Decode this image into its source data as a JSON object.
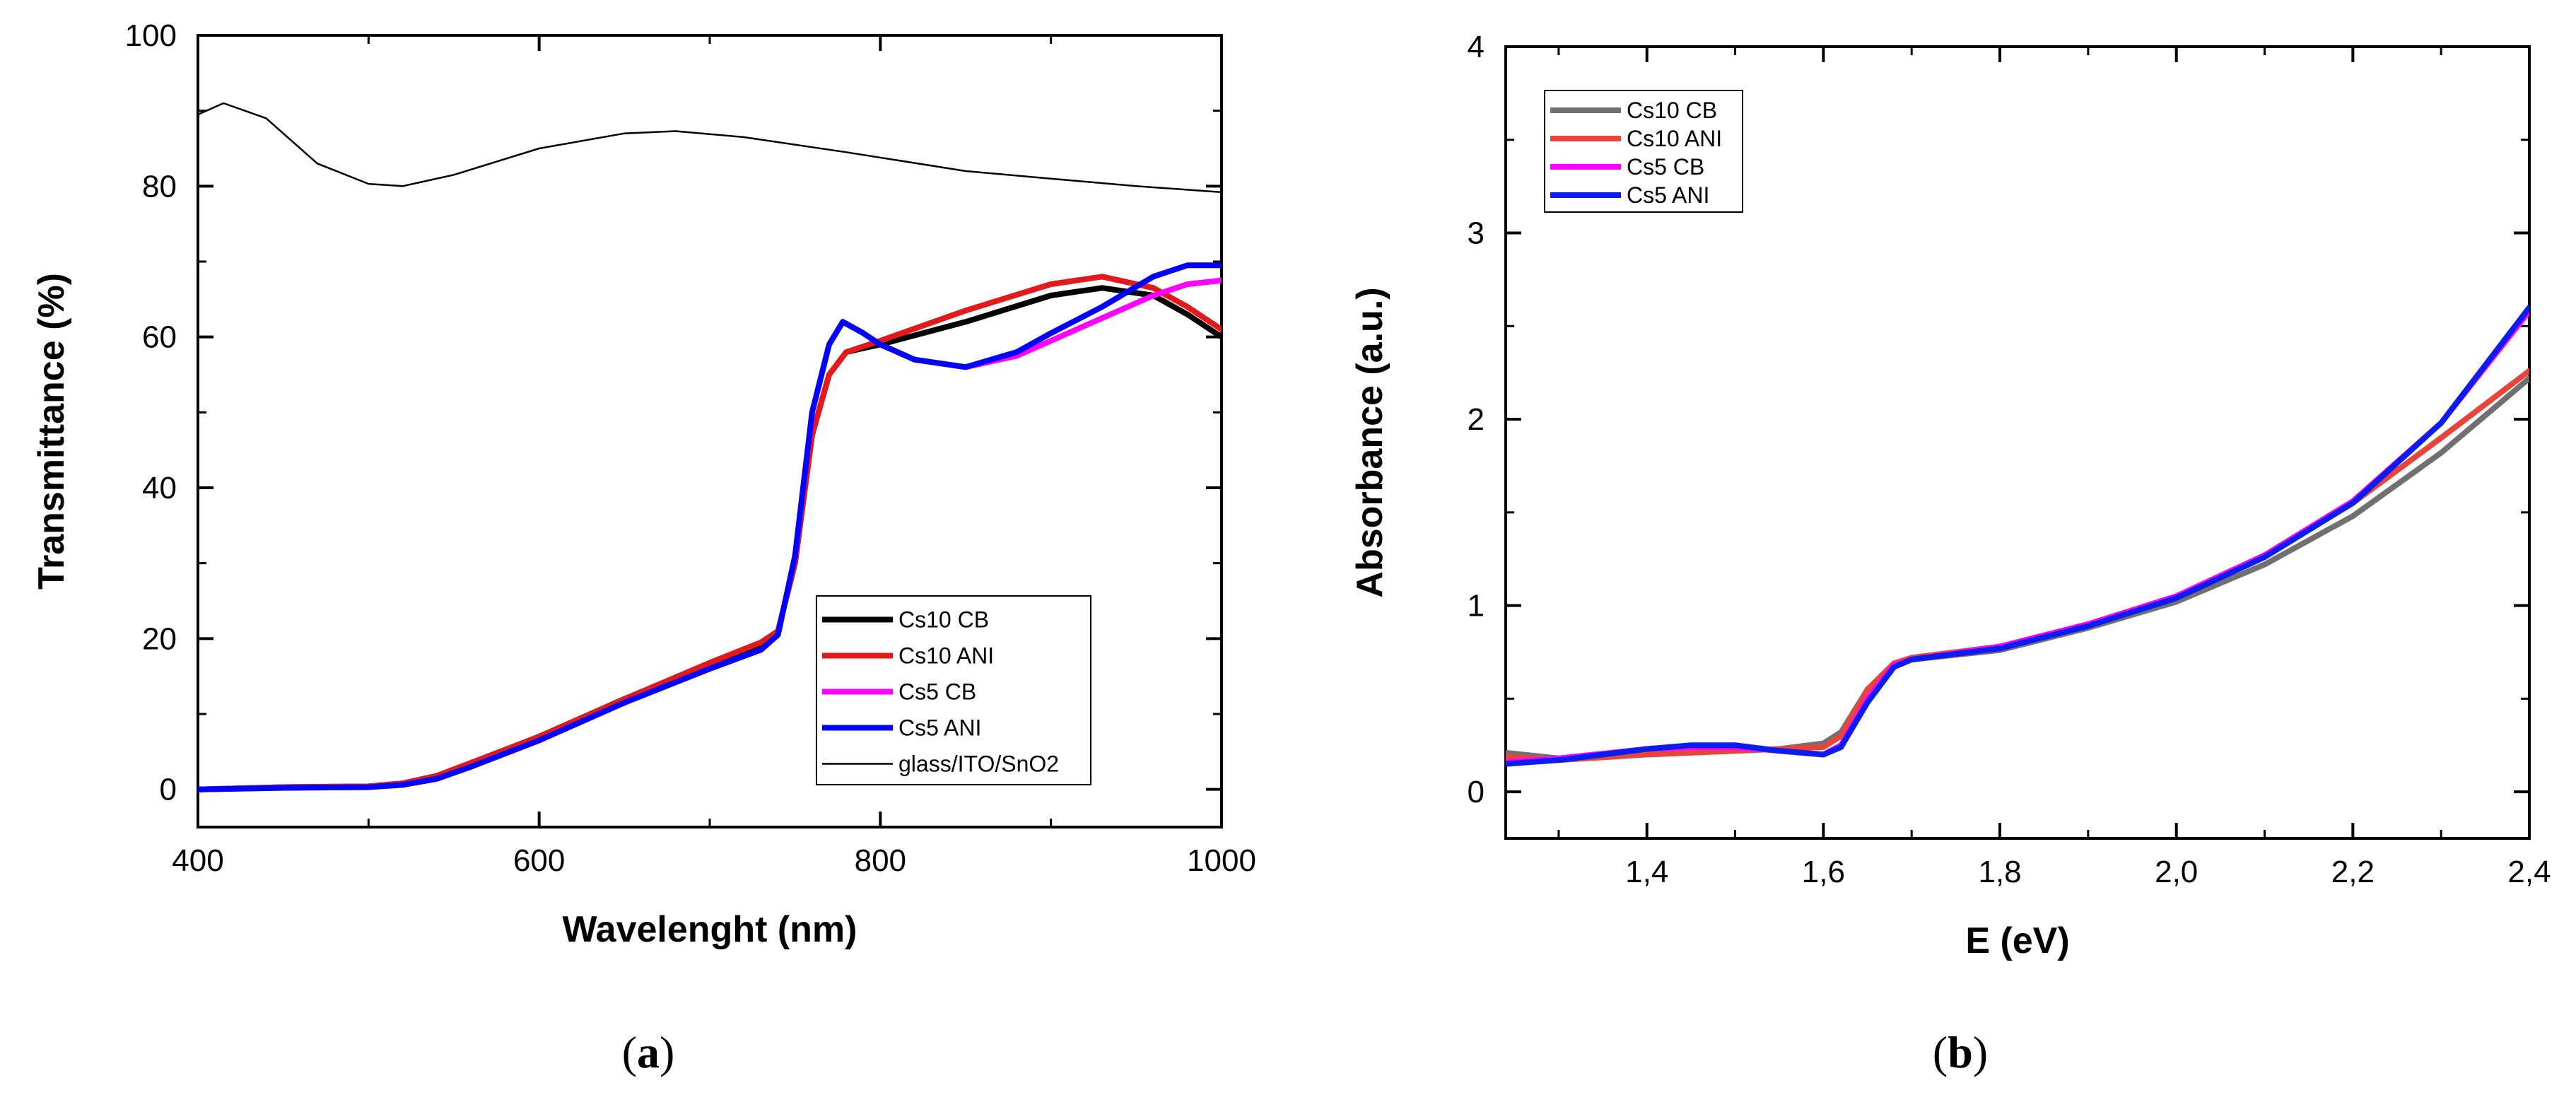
{
  "figure": {
    "captions": {
      "a": "a",
      "b": "b"
    }
  },
  "chart_data": [
    {
      "type": "line",
      "panel": "a",
      "xlabel": "Wavelenght (nm)",
      "ylabel": "Transmittance (%)",
      "xlim": [
        400,
        1000
      ],
      "ylim": [
        -5,
        100
      ],
      "xticks": [
        400,
        600,
        800,
        1000
      ],
      "yticks": [
        0,
        20,
        40,
        60,
        80,
        100
      ],
      "legend_position": "center-right",
      "series": [
        {
          "name": "Cs10 CB",
          "color": "#000000",
          "x": [
            400,
            450,
            500,
            520,
            540,
            560,
            600,
            650,
            700,
            730,
            740,
            750,
            760,
            770,
            780,
            800,
            850,
            900,
            930,
            960,
            980,
            1000
          ],
          "y": [
            0,
            0.3,
            0.4,
            0.8,
            1.8,
            3.5,
            7,
            12,
            16.5,
            19,
            21,
            30,
            47,
            55,
            58,
            59,
            62,
            65.5,
            66.5,
            65.5,
            63,
            60
          ]
        },
        {
          "name": "Cs10 ANI",
          "color": "#e31a1c",
          "x": [
            400,
            450,
            500,
            520,
            540,
            560,
            600,
            650,
            700,
            730,
            740,
            750,
            760,
            770,
            780,
            800,
            850,
            900,
            930,
            960,
            980,
            1000
          ],
          "y": [
            0,
            0.3,
            0.4,
            0.8,
            1.8,
            3.5,
            7,
            12,
            16.8,
            19.5,
            21,
            30,
            47,
            55,
            58,
            59.5,
            63.5,
            67,
            68,
            66.5,
            64,
            61
          ]
        },
        {
          "name": "Cs5 CB",
          "color": "#ff00ff",
          "x": [
            400,
            450,
            500,
            520,
            540,
            560,
            600,
            650,
            700,
            730,
            740,
            750,
            760,
            770,
            778,
            790,
            800,
            820,
            850,
            880,
            900,
            930,
            960,
            980,
            1000
          ],
          "y": [
            0,
            0.2,
            0.3,
            0.6,
            1.4,
            3,
            6.5,
            11.5,
            16,
            18.5,
            20.5,
            31,
            50,
            59,
            62,
            60.5,
            59,
            57,
            56,
            57.5,
            59.5,
            62.5,
            65.5,
            67,
            67.5
          ]
        },
        {
          "name": "Cs5 ANI",
          "color": "#0000ff",
          "x": [
            400,
            450,
            500,
            520,
            540,
            560,
            600,
            650,
            700,
            730,
            740,
            750,
            760,
            770,
            778,
            790,
            800,
            820,
            850,
            880,
            900,
            930,
            960,
            980,
            1000
          ],
          "y": [
            0,
            0.2,
            0.3,
            0.6,
            1.4,
            3,
            6.5,
            11.5,
            16,
            18.5,
            20.5,
            31,
            50,
            59,
            62,
            60.5,
            59,
            57,
            56,
            58,
            60.5,
            64,
            68,
            69.5,
            69.5
          ]
        },
        {
          "name": "glass/ITO/SnO2",
          "color": "#000000",
          "thin": true,
          "x": [
            400,
            415,
            440,
            470,
            500,
            520,
            550,
            600,
            650,
            680,
            720,
            780,
            850,
            900,
            950,
            1000
          ],
          "y": [
            89.5,
            91,
            89,
            83,
            80.3,
            80,
            81.5,
            85,
            87,
            87.3,
            86.5,
            84.5,
            82,
            81,
            80,
            79.2
          ]
        }
      ]
    },
    {
      "type": "line",
      "panel": "b",
      "xlabel": "E (eV)",
      "ylabel": "Absorbance (a.u.)",
      "xlim": [
        1.24,
        2.4
      ],
      "ylim": [
        -0.25,
        4
      ],
      "xticks": [
        "1,4",
        "1,6",
        "1,8",
        "2,0",
        "2,2",
        "2,4"
      ],
      "xtick_values": [
        1.4,
        1.6,
        1.8,
        2.0,
        2.2,
        2.4
      ],
      "yticks": [
        0,
        1,
        2,
        3,
        4
      ],
      "legend_position": "top-left",
      "series": [
        {
          "name": "Cs10 CB",
          "color": "#707070",
          "x": [
            1.24,
            1.3,
            1.4,
            1.5,
            1.55,
            1.6,
            1.62,
            1.65,
            1.68,
            1.7,
            1.8,
            1.9,
            2.0,
            2.1,
            2.2,
            2.3,
            2.4
          ],
          "y": [
            0.21,
            0.18,
            0.2,
            0.22,
            0.23,
            0.26,
            0.32,
            0.55,
            0.68,
            0.71,
            0.76,
            0.88,
            1.02,
            1.22,
            1.48,
            1.82,
            2.22
          ]
        },
        {
          "name": "Cs10 ANI",
          "color": "#e8443a",
          "x": [
            1.24,
            1.3,
            1.4,
            1.5,
            1.55,
            1.6,
            1.62,
            1.65,
            1.68,
            1.7,
            1.8,
            1.9,
            2.0,
            2.1,
            2.2,
            2.3,
            2.4
          ],
          "y": [
            0.19,
            0.17,
            0.2,
            0.22,
            0.23,
            0.24,
            0.3,
            0.55,
            0.69,
            0.72,
            0.78,
            0.9,
            1.05,
            1.27,
            1.55,
            1.9,
            2.26
          ]
        },
        {
          "name": "Cs5 CB",
          "color": "#ff00ff",
          "x": [
            1.24,
            1.3,
            1.4,
            1.45,
            1.5,
            1.55,
            1.6,
            1.62,
            1.65,
            1.68,
            1.7,
            1.8,
            1.9,
            2.0,
            2.1,
            2.2,
            2.3,
            2.4
          ],
          "y": [
            0.16,
            0.18,
            0.23,
            0.24,
            0.24,
            0.22,
            0.2,
            0.25,
            0.5,
            0.68,
            0.71,
            0.78,
            0.9,
            1.05,
            1.27,
            1.56,
            1.98,
            2.58
          ]
        },
        {
          "name": "Cs5 ANI",
          "color": "#0a1cf0",
          "x": [
            1.24,
            1.3,
            1.4,
            1.45,
            1.5,
            1.55,
            1.6,
            1.62,
            1.65,
            1.68,
            1.7,
            1.8,
            1.9,
            2.0,
            2.1,
            2.2,
            2.3,
            2.4
          ],
          "y": [
            0.15,
            0.17,
            0.23,
            0.25,
            0.25,
            0.22,
            0.2,
            0.24,
            0.48,
            0.67,
            0.71,
            0.77,
            0.89,
            1.04,
            1.26,
            1.55,
            1.98,
            2.6
          ]
        }
      ]
    }
  ]
}
